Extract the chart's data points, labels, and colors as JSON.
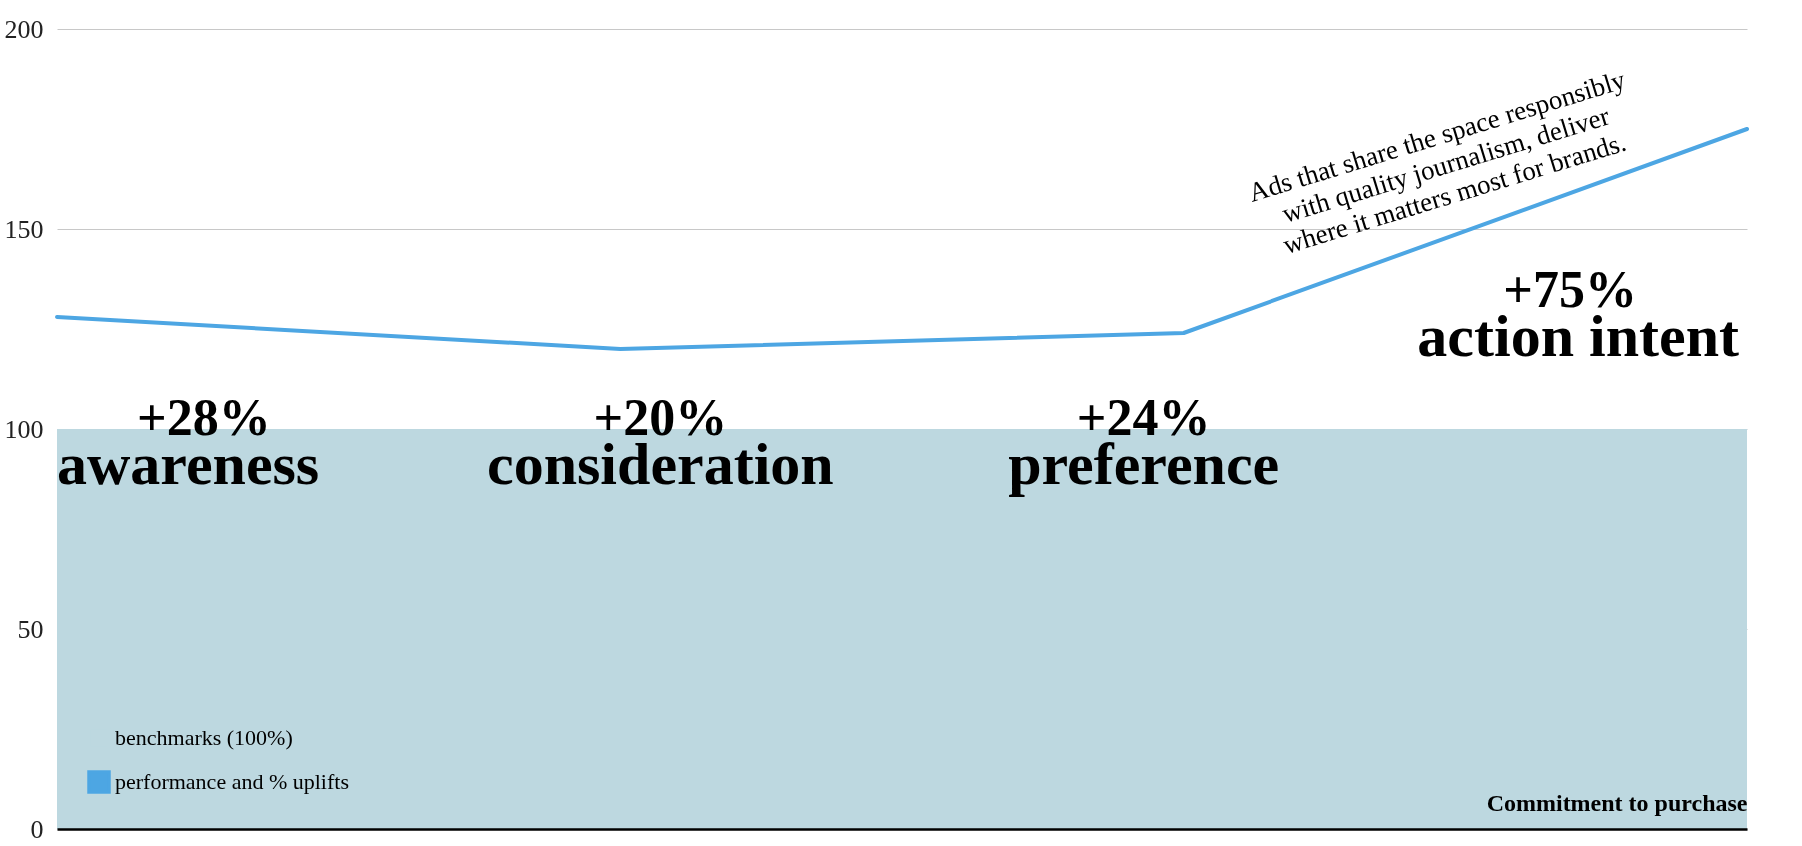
{
  "chart_data": {
    "type": "line",
    "categories": [
      null,
      null,
      null,
      null
    ],
    "xlabel": "Commitment to purchase",
    "series": [
      {
        "name": "benchmarks (100%)",
        "type": "area",
        "color": "#bdd8e0",
        "values": [
          100,
          100,
          100,
          100
        ]
      },
      {
        "name": "performance and % uplifts",
        "type": "line",
        "color": "#4da6e3",
        "values": [
          128,
          120,
          124,
          175
        ]
      }
    ],
    "ylim": [
      0,
      200
    ],
    "yticks": [
      0,
      50,
      100,
      150,
      200
    ],
    "grid": "y",
    "legend": "bottom left",
    "annotations": [
      "+28%",
      "awareness",
      "+20%",
      "consideration",
      "+24%",
      "preference",
      "+75%",
      "action intent",
      "Ads that share the space responsibly\nwith quality journalism, deliver\nwhere it matters most for brands."
    ]
  }
}
